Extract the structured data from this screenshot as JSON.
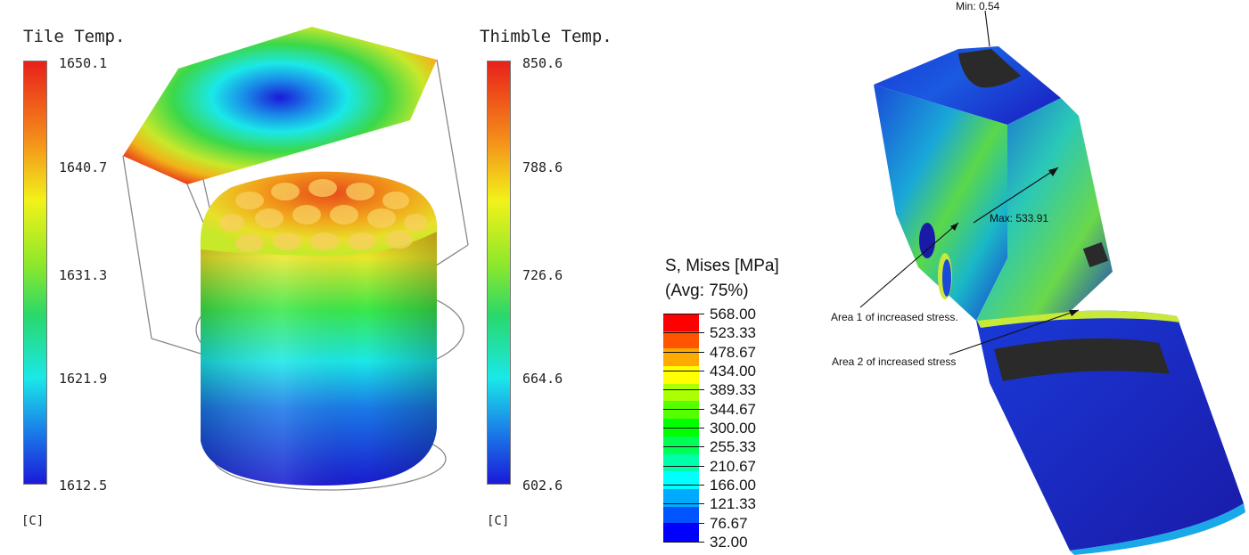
{
  "tile_legend": {
    "title": "Tile Temp.",
    "ticks": [
      "1650.1",
      "1640.7",
      "1631.3",
      "1621.9",
      "1612.5"
    ],
    "unit": "[C]"
  },
  "thimble_legend": {
    "title": "Thimble Temp.",
    "ticks": [
      "850.6",
      "788.6",
      "726.6",
      "664.6",
      "602.6"
    ],
    "unit": "[C]"
  },
  "mises_legend": {
    "title_line1": "S, Mises [MPa]",
    "title_line2": "(Avg: 75%)",
    "values": [
      "568.00",
      "523.33",
      "478.67",
      "434.00",
      "389.33",
      "344.67",
      "300.00",
      "255.33",
      "210.67",
      "166.00",
      "121.33",
      "76.67",
      "32.00"
    ],
    "band_colors": [
      "#ff0000",
      "#ff5500",
      "#ffaa00",
      "#ffff00",
      "#aaff00",
      "#55ff00",
      "#00ff00",
      "#00ff55",
      "#00ffaa",
      "#00ffff",
      "#00aaff",
      "#0055ff",
      "#0000ff"
    ]
  },
  "fea_annotations": {
    "min_label": "Min: 0.54",
    "max_label": "Max: 533.91",
    "area1_label": "Area 1 of increased stress.",
    "area2_label": "Area 2 of increased stress"
  },
  "colors": {
    "jet_red": "#e8281a",
    "jet_yellow": "#f2f21a",
    "jet_green": "#2dd82d",
    "jet_cyan": "#1ae8e8",
    "jet_blue": "#1a1ad8",
    "fea_dark": "#333333"
  }
}
